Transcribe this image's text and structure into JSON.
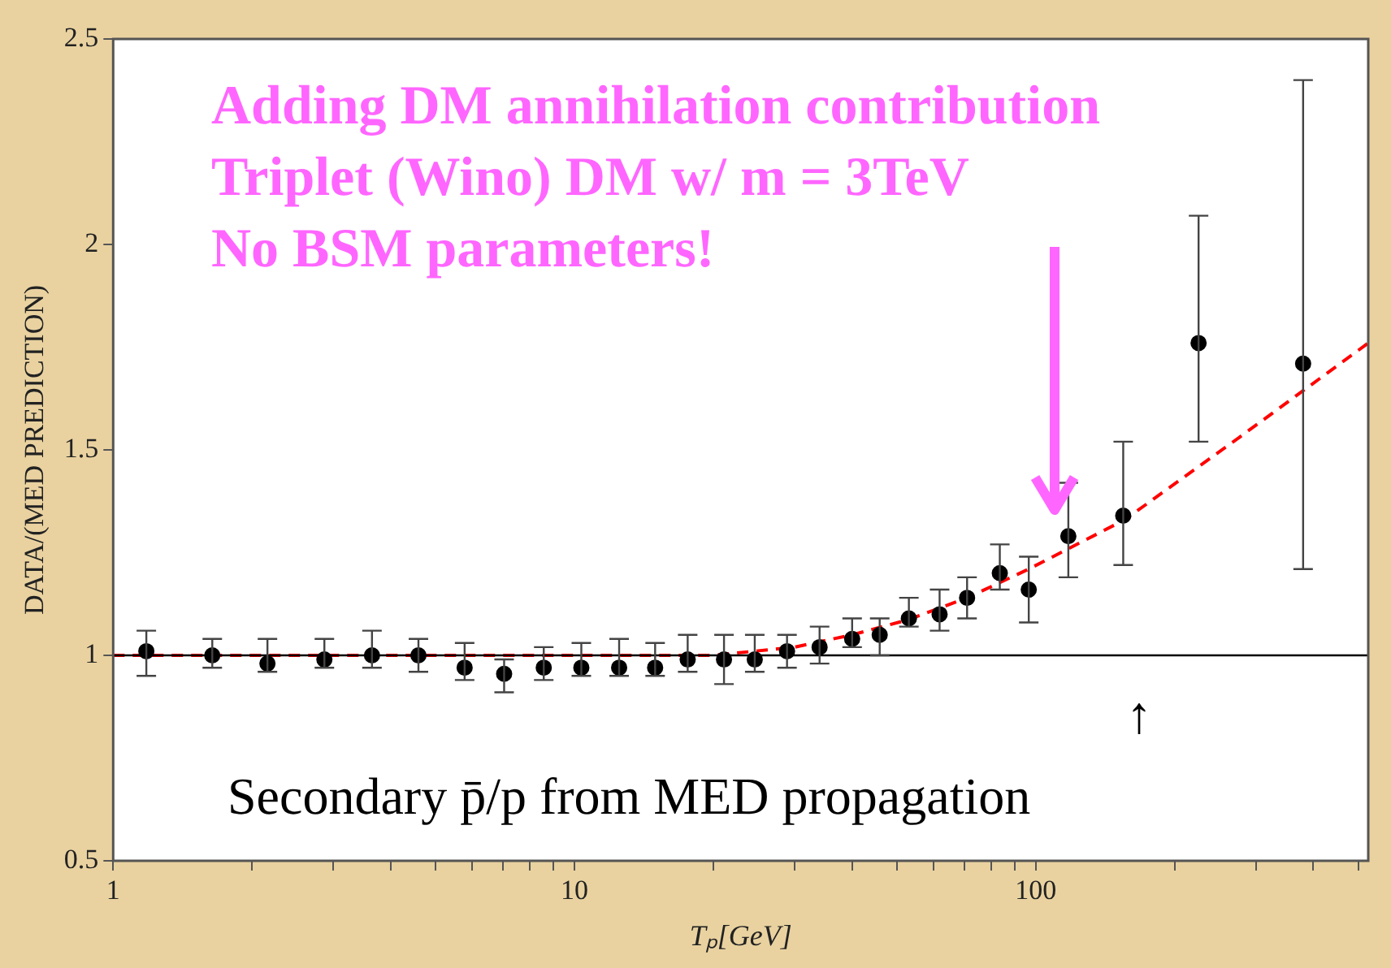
{
  "chart_data": {
    "type": "scatter",
    "xlabel": "Tₚ[GeV]",
    "ylabel": "DATA/(MED PREDICTION)",
    "log": "x",
    "grid": false,
    "legend": false,
    "xlim": [
      1,
      526
    ],
    "ylim": [
      0.5,
      2.5
    ],
    "xticks": [
      1,
      {
        "value": 2,
        "label": null
      },
      {
        "value": 3,
        "label": null
      },
      {
        "value": 4,
        "label": null
      },
      {
        "value": 5,
        "label": null
      },
      {
        "value": 6,
        "label": null
      },
      {
        "value": 7,
        "label": null
      },
      {
        "value": 8,
        "label": null
      },
      {
        "value": 9,
        "label": null
      },
      10,
      {
        "value": 20,
        "label": null
      },
      {
        "value": 30,
        "label": null
      },
      {
        "value": 40,
        "label": null
      },
      {
        "value": 50,
        "label": null
      },
      {
        "value": 60,
        "label": null
      },
      {
        "value": 70,
        "label": null
      },
      {
        "value": 80,
        "label": null
      },
      {
        "value": 90,
        "label": null
      },
      100,
      {
        "value": 200,
        "label": null
      },
      {
        "value": 300,
        "label": null
      },
      {
        "value": 400,
        "label": null
      },
      {
        "value": 500,
        "label": null
      }
    ],
    "yticks": [
      0.5,
      1,
      1.5,
      2,
      2.5
    ],
    "ref_lines": [
      {
        "axis": "y",
        "value": 1,
        "color": "#000000",
        "line_style": "solid"
      }
    ],
    "annotations": [
      "Adding DM annihilation contribution",
      "Triplet (Wino) DM w/ m = 3TeV",
      "No BSM parameters!",
      "↑",
      "Secondary p̄/p from MED propagation"
    ],
    "series": [
      {
        "color": "#000000",
        "marker": "circle",
        "x": [
          1.18,
          1.64,
          2.16,
          2.87,
          3.64,
          4.59,
          5.78,
          7.04,
          8.58,
          10.35,
          12.5,
          14.96,
          17.6,
          21.1,
          24.6,
          28.9,
          34.0,
          40.0,
          45.9,
          53.1,
          61.9,
          71.0,
          83.6,
          96.6,
          117.7,
          154.8,
          225.5,
          380
        ],
        "values": [
          1.01,
          1.0,
          0.98,
          0.99,
          1.0,
          1.0,
          0.97,
          0.955,
          0.97,
          0.97,
          0.97,
          0.97,
          0.99,
          0.99,
          0.99,
          1.01,
          1.02,
          1.04,
          1.05,
          1.09,
          1.1,
          1.14,
          1.2,
          1.16,
          1.29,
          1.34,
          1.76,
          1.71
        ],
        "errors": [
          [
            0.95,
            1.06
          ],
          [
            0.97,
            1.04
          ],
          [
            0.96,
            1.04
          ],
          [
            0.97,
            1.04
          ],
          [
            0.97,
            1.06
          ],
          [
            0.96,
            1.04
          ],
          [
            0.94,
            1.03
          ],
          [
            0.91,
            0.99
          ],
          [
            0.94,
            1.02
          ],
          [
            0.95,
            1.03
          ],
          [
            0.95,
            1.04
          ],
          [
            0.95,
            1.03
          ],
          [
            0.96,
            1.05
          ],
          [
            0.93,
            1.05
          ],
          [
            0.96,
            1.05
          ],
          [
            0.97,
            1.05
          ],
          [
            0.98,
            1.07
          ],
          [
            1.02,
            1.09
          ],
          [
            1.0,
            1.09
          ],
          [
            1.07,
            1.14
          ],
          [
            1.06,
            1.16
          ],
          [
            1.09,
            1.19
          ],
          [
            1.16,
            1.27
          ],
          [
            1.08,
            1.24
          ],
          [
            1.19,
            1.42
          ],
          [
            1.22,
            1.52
          ],
          [
            1.52,
            2.07
          ],
          [
            1.21,
            2.4
          ]
        ]
      },
      {
        "type": "line",
        "color": "#ff0000",
        "line_style": "dashed",
        "marker": "none",
        "x": [
          1,
          10,
          20,
          30,
          40,
          53,
          71,
          96.6,
          156,
          276,
          526
        ],
        "values": [
          1.0,
          1.0,
          1.0,
          1.02,
          1.05,
          1.087,
          1.14,
          1.21,
          1.33,
          1.53,
          1.76
        ]
      }
    ]
  }
}
